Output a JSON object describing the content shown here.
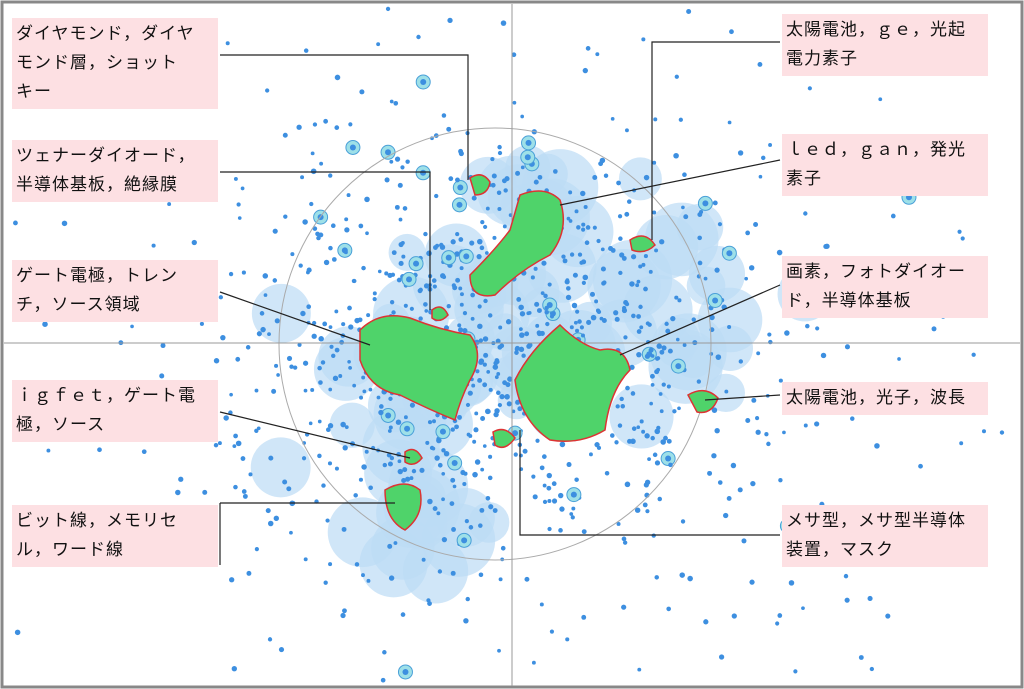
{
  "labels": [
    {
      "lines": [
        "ダイヤモンド，ダイヤ",
        "モンド層，ショット",
        "キー"
      ]
    },
    {
      "lines": [
        "ツェナーダイオード，",
        "半導体基板，絶縁膜"
      ]
    },
    {
      "lines": [
        "ゲート電極，トレン",
        "チ，ソース領域"
      ]
    },
    {
      "lines": [
        "ｉｇｆｅｔ，ゲート電",
        "極，ソース"
      ]
    },
    {
      "lines": [
        "ビット線，メモリセ",
        "ル，ワード線"
      ]
    },
    {
      "lines": [
        "太陽電池，ｇｅ，光起",
        "電力素子"
      ]
    },
    {
      "lines": [
        "ｌｅｄ，ｇａｎ，発光",
        "素子"
      ]
    },
    {
      "lines": [
        "画素，フォトダイオー",
        "ド，半導体基板"
      ]
    },
    {
      "lines": [
        "太陽電池，光子，波長"
      ]
    },
    {
      "lines": [
        "メサ型，メサ型半導体",
        "装置，マスク"
      ]
    }
  ]
}
